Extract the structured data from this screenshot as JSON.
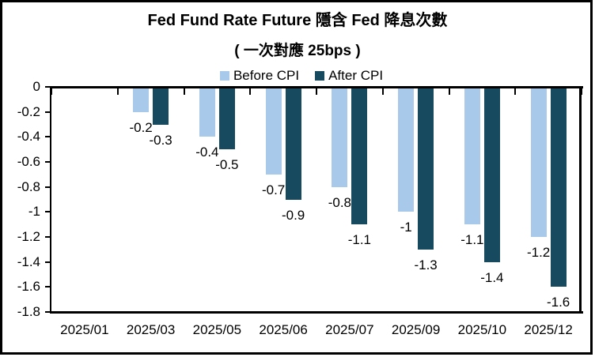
{
  "chart_data": {
    "type": "bar",
    "title": "Fed Fund Rate Future 隱含 Fed 降息次數",
    "subtitle": "( 一次對應 25bps )",
    "categories": [
      "2025/01",
      "2025/03",
      "2025/05",
      "2025/06",
      "2025/07",
      "2025/09",
      "2025/10",
      "2025/12"
    ],
    "series": [
      {
        "name": "Before CPI",
        "color": "#A8C9E9",
        "values": [
          0,
          -0.2,
          -0.4,
          -0.7,
          -0.8,
          -1,
          -1.1,
          -1.2
        ]
      },
      {
        "name": "After CPI",
        "color": "#17495F",
        "values": [
          0,
          -0.3,
          -0.5,
          -0.9,
          -1.1,
          -1.3,
          -1.4,
          -1.6
        ]
      }
    ],
    "ylim": [
      -1.8,
      0
    ],
    "yticks": [
      "0",
      "-0.2",
      "-0.4",
      "-0.6",
      "-0.8",
      "-1",
      "-1.2",
      "-1.4",
      "-1.6",
      "-1.8"
    ],
    "grid": false,
    "legend_position": "top",
    "data_labels": "outside-end",
    "axis_color": "#000000",
    "label_color": "#000000"
  }
}
